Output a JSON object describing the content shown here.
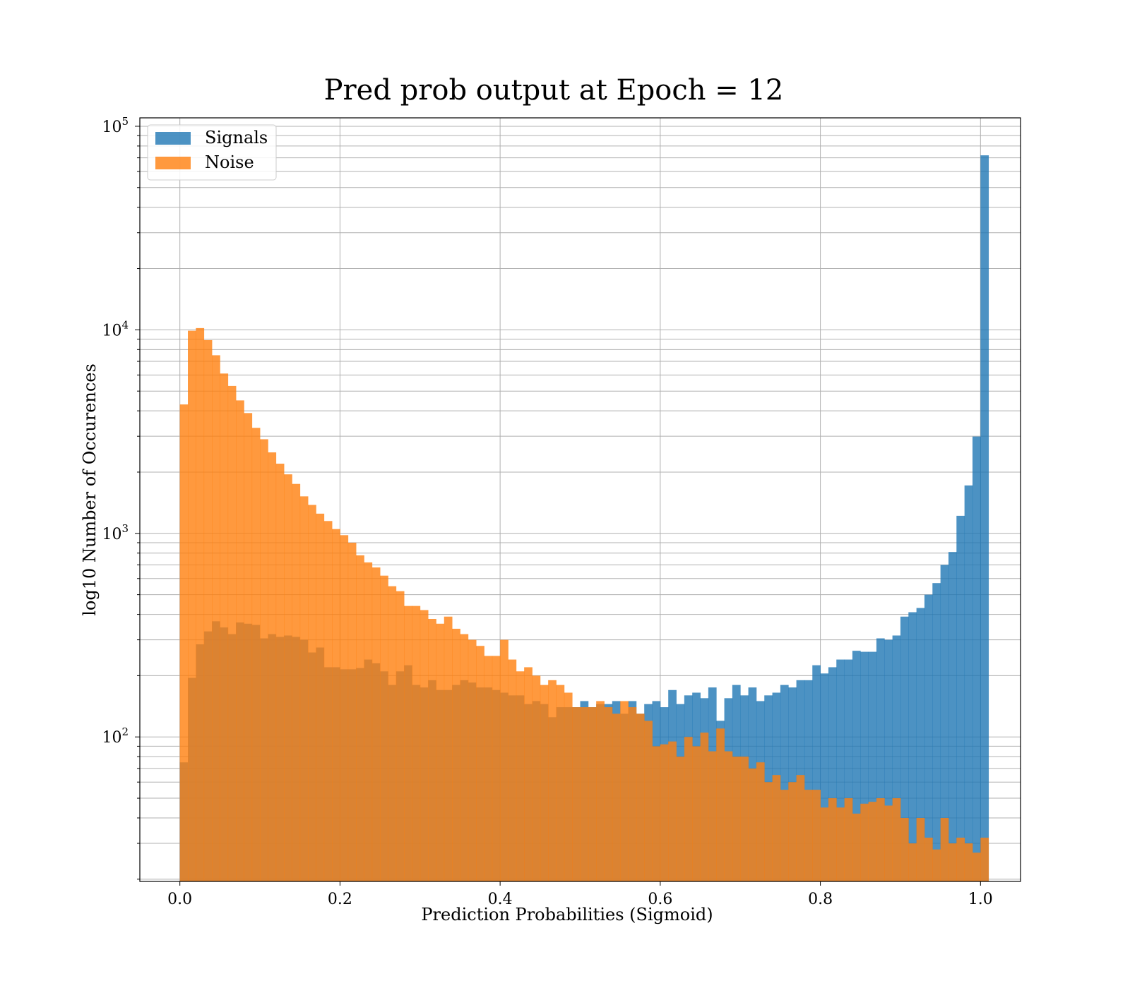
{
  "chart_data": {
    "type": "bar",
    "title": "Pred prob output at Epoch = 12",
    "xlabel": "Prediction Probabilities (Sigmoid)",
    "ylabel": "log10 Number of Occurences",
    "xlim": [
      -0.05,
      1.05
    ],
    "ylim": [
      19.5,
      110000
    ],
    "y_scale": "log",
    "grid": true,
    "legend_position": "top-left",
    "x_ticks": [
      "0.0",
      "0.2",
      "0.4",
      "0.6",
      "0.8",
      "1.0"
    ],
    "y_ticks": [
      {
        "base": "10",
        "exp": "2",
        "value": 100
      },
      {
        "base": "10",
        "exp": "3",
        "value": 1000
      },
      {
        "base": "10",
        "exp": "4",
        "value": 10000
      },
      {
        "base": "10",
        "exp": "5",
        "value": 100000
      }
    ],
    "bin_start": 0.0,
    "bin_width": 0.01,
    "series": [
      {
        "name": "Signals",
        "color": "#1f77b4",
        "opacity": 0.8,
        "values": [
          75,
          195,
          285,
          330,
          370,
          345,
          320,
          365,
          360,
          355,
          305,
          320,
          310,
          315,
          310,
          300,
          260,
          275,
          220,
          220,
          215,
          215,
          218,
          240,
          230,
          210,
          180,
          210,
          225,
          180,
          175,
          190,
          170,
          170,
          180,
          190,
          185,
          175,
          175,
          170,
          165,
          160,
          160,
          145,
          150,
          145,
          125,
          140,
          140,
          140,
          150,
          140,
          145,
          145,
          150,
          130,
          150,
          130,
          145,
          150,
          140,
          170,
          145,
          160,
          165,
          155,
          175,
          120,
          155,
          180,
          160,
          175,
          150,
          160,
          165,
          180,
          175,
          190,
          190,
          225,
          205,
          220,
          240,
          240,
          265,
          262,
          262,
          305,
          300,
          315,
          390,
          410,
          430,
          500,
          570,
          700,
          810,
          1220,
          1720,
          2990,
          72000
        ]
      },
      {
        "name": "Noise",
        "color": "#ff7f0e",
        "opacity": 0.8,
        "values": [
          4300,
          9900,
          10200,
          8900,
          7500,
          6100,
          5300,
          4500,
          3900,
          3300,
          2900,
          2500,
          2200,
          1950,
          1750,
          1520,
          1380,
          1250,
          1150,
          1050,
          980,
          900,
          780,
          720,
          680,
          620,
          550,
          520,
          440,
          440,
          420,
          380,
          360,
          390,
          340,
          320,
          300,
          280,
          250,
          250,
          300,
          240,
          210,
          220,
          200,
          180,
          190,
          180,
          165,
          140,
          140,
          140,
          150,
          140,
          130,
          150,
          140,
          130,
          120,
          90,
          92,
          95,
          80,
          100,
          90,
          105,
          85,
          110,
          85,
          80,
          80,
          70,
          75,
          60,
          65,
          55,
          60,
          65,
          55,
          55,
          45,
          50,
          45,
          50,
          42,
          47,
          48,
          50,
          46,
          50,
          40,
          30,
          40,
          32,
          28,
          40,
          30,
          32,
          30,
          27,
          32
        ]
      }
    ]
  }
}
